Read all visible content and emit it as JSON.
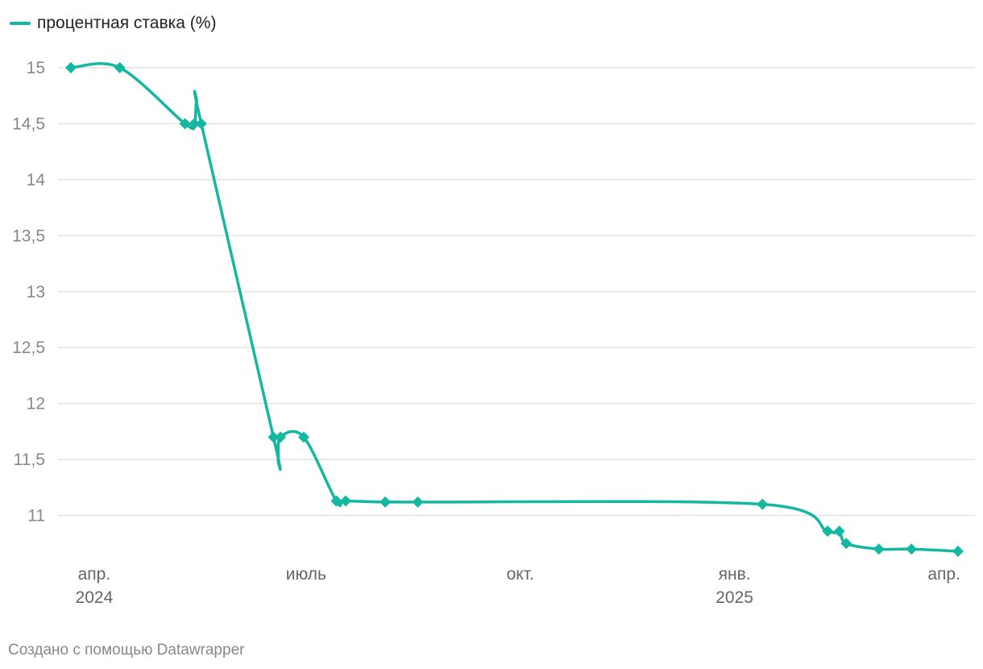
{
  "chart_data": {
    "type": "line",
    "legend": {
      "label": "процентная ставка (%)",
      "position": "top-left"
    },
    "series": [
      {
        "name": "процентная ставка (%)",
        "color": "#13b8a0",
        "marker": "diamond",
        "points": [
          {
            "date": "2024-03-22",
            "value": 15
          },
          {
            "date": "2024-04-12",
            "value": 15
          },
          {
            "date": "2024-05-10",
            "value": 14.5
          },
          {
            "date": "2024-05-14",
            "value": 14.5
          },
          {
            "date": "2024-05-15",
            "value": 14.7
          },
          {
            "date": "2024-05-17",
            "value": 14.5
          },
          {
            "date": "2024-06-17",
            "value": 11.7
          },
          {
            "date": "2024-06-19",
            "value": 11.5
          },
          {
            "date": "2024-06-20",
            "value": 11.7
          },
          {
            "date": "2024-06-30",
            "value": 11.7
          },
          {
            "date": "2024-07-14",
            "value": 11.13
          },
          {
            "date": "2024-07-18",
            "value": 11.13
          },
          {
            "date": "2024-08-04",
            "value": 11.12
          },
          {
            "date": "2024-08-18",
            "value": 11.12
          },
          {
            "date": "2025-01-13",
            "value": 11.1
          },
          {
            "date": "2025-02-10",
            "value": 10.86
          },
          {
            "date": "2025-02-15",
            "value": 10.86
          },
          {
            "date": "2025-02-18",
            "value": 10.75
          },
          {
            "date": "2025-03-04",
            "value": 10.7
          },
          {
            "date": "2025-03-18",
            "value": 10.7
          },
          {
            "date": "2025-04-07",
            "value": 10.68
          }
        ],
        "markers": [
          {
            "date": "2024-03-22",
            "value": 15
          },
          {
            "date": "2024-04-12",
            "value": 15
          },
          {
            "date": "2024-05-10",
            "value": 14.5
          },
          {
            "date": "2024-05-14",
            "value": 14.5
          },
          {
            "date": "2024-05-17",
            "value": 14.5
          },
          {
            "date": "2024-06-17",
            "value": 11.7
          },
          {
            "date": "2024-06-20",
            "value": 11.7
          },
          {
            "date": "2024-06-30",
            "value": 11.7
          },
          {
            "date": "2024-07-14",
            "value": 11.13
          },
          {
            "date": "2024-07-18",
            "value": 11.13
          },
          {
            "date": "2024-08-04",
            "value": 11.12
          },
          {
            "date": "2024-08-18",
            "value": 11.12
          },
          {
            "date": "2025-01-13",
            "value": 11.1
          },
          {
            "date": "2025-02-10",
            "value": 10.86
          },
          {
            "date": "2025-02-15",
            "value": 10.86
          },
          {
            "date": "2025-02-18",
            "value": 10.75
          },
          {
            "date": "2025-03-04",
            "value": 10.7
          },
          {
            "date": "2025-03-18",
            "value": 10.7
          },
          {
            "date": "2025-04-07",
            "value": 10.68
          }
        ]
      }
    ],
    "y_axis": {
      "ylim": [
        10.68,
        15
      ],
      "ticks": [
        {
          "value": 15,
          "label": "15"
        },
        {
          "value": 14.5,
          "label": "14,5"
        },
        {
          "value": 14,
          "label": "14"
        },
        {
          "value": 13.5,
          "label": "13,5"
        },
        {
          "value": 13,
          "label": "13"
        },
        {
          "value": 12.5,
          "label": "12,5"
        },
        {
          "value": 12,
          "label": "12"
        },
        {
          "value": 11.5,
          "label": "11,5"
        },
        {
          "value": 11,
          "label": "11"
        }
      ],
      "grid": true
    },
    "x_axis": {
      "xlim": [
        "2024-03-22",
        "2025-04-07"
      ],
      "ticks": [
        {
          "date": "2024-04-01",
          "label": "апр.",
          "year": "2024"
        },
        {
          "date": "2024-07-01",
          "label": "июль",
          "year": ""
        },
        {
          "date": "2024-10-01",
          "label": "окт.",
          "year": ""
        },
        {
          "date": "2025-01-01",
          "label": "янв.",
          "year": "2025"
        },
        {
          "date": "2025-04-01",
          "label": "апр.",
          "year": ""
        }
      ]
    }
  },
  "footer": {
    "credit": "Создано с помощью Datawrapper"
  }
}
